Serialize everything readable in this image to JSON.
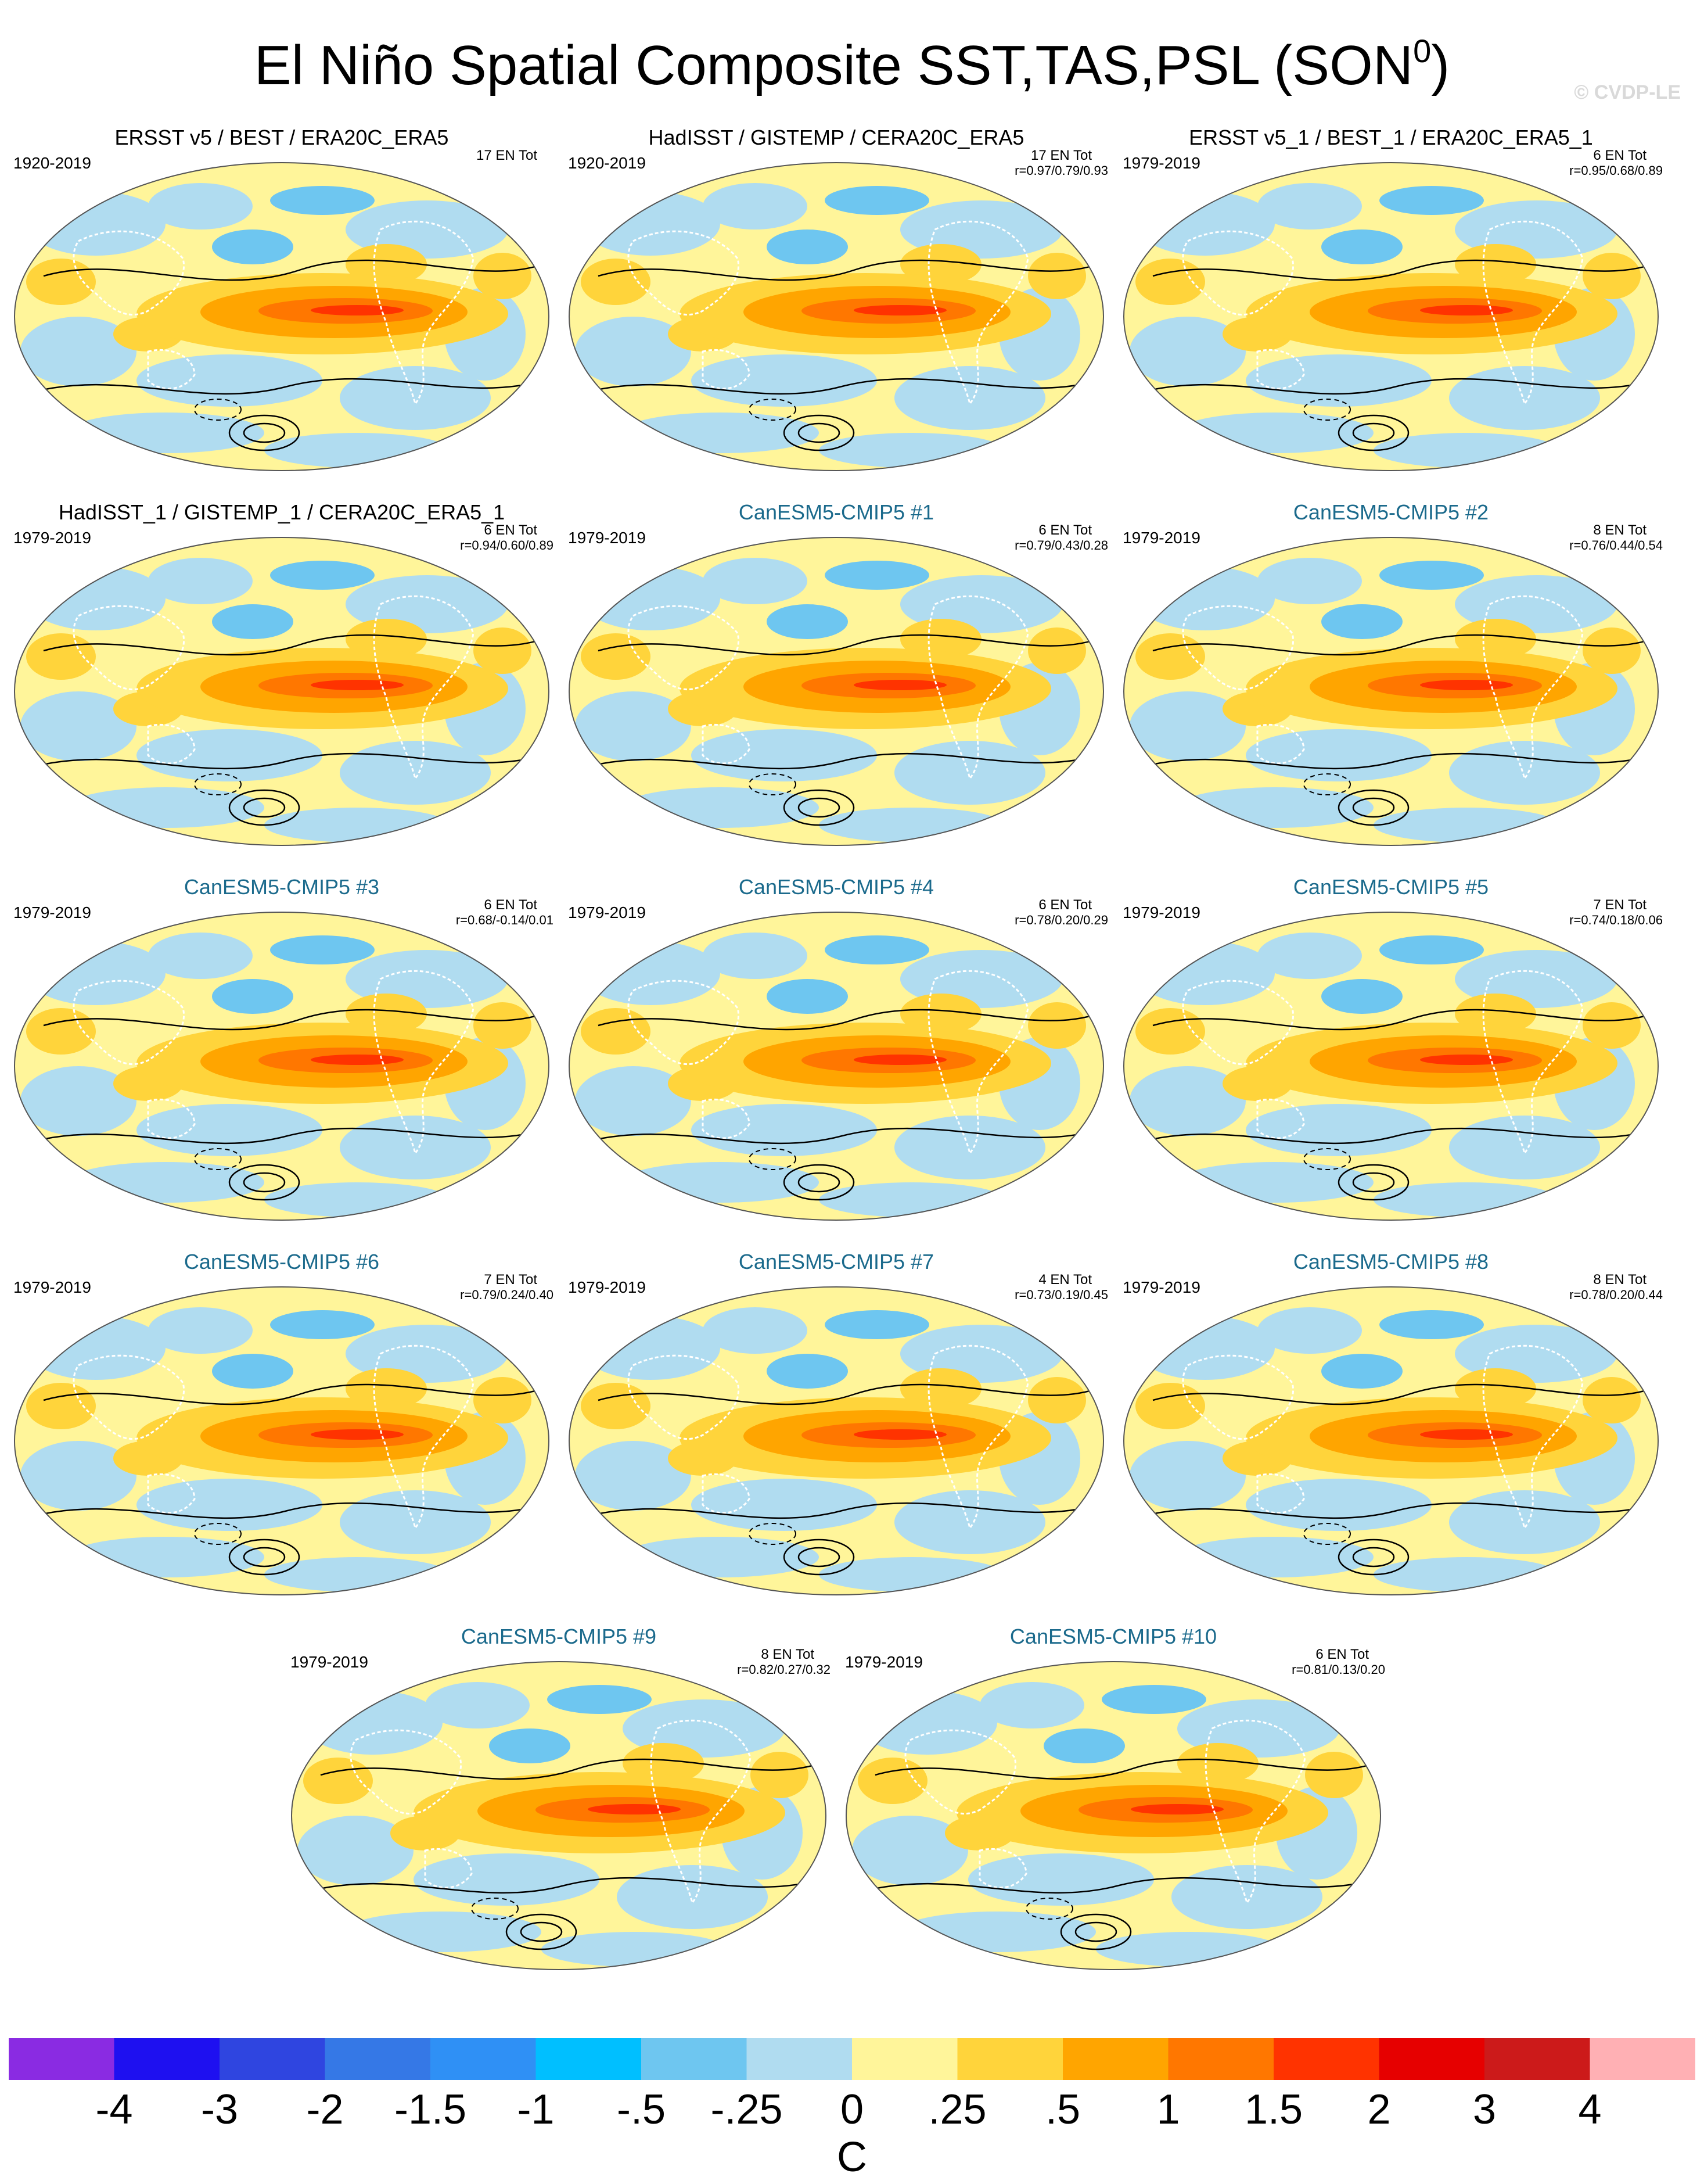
{
  "title": {
    "main": "El Niño Spatial Composite SST,TAS,PSL (SON",
    "sup": "0",
    "close": ")"
  },
  "watermark": "© CVDP-LE",
  "panels": [
    {
      "title": "ERSST v5 / BEST / ERA20C_ERA5",
      "model": false,
      "period": "1920-2019",
      "count": "17 EN Tot",
      "corr": ""
    },
    {
      "title": "HadISST / GISTEMP / CERA20C_ERA5",
      "model": false,
      "period": "1920-2019",
      "count": "17 EN Tot",
      "corr": "r=0.97/0.79/0.93"
    },
    {
      "title": "ERSST v5_1 / BEST_1 / ERA20C_ERA5_1",
      "model": false,
      "period": "1979-2019",
      "count": "6 EN Tot",
      "corr": "r=0.95/0.68/0.89"
    },
    {
      "title": "HadISST_1 / GISTEMP_1 / CERA20C_ERA5_1",
      "model": false,
      "period": "1979-2019",
      "count": "6 EN Tot",
      "corr": "r=0.94/0.60/0.89"
    },
    {
      "title": "CanESM5-CMIP5 #1",
      "model": true,
      "period": "1979-2019",
      "count": "6 EN Tot",
      "corr": "r=0.79/0.43/0.28"
    },
    {
      "title": "CanESM5-CMIP5 #2",
      "model": true,
      "period": "1979-2019",
      "count": "8 EN Tot",
      "corr": "r=0.76/0.44/0.54"
    },
    {
      "title": "CanESM5-CMIP5 #3",
      "model": true,
      "period": "1979-2019",
      "count": "6 EN Tot",
      "corr": "r=0.68/-0.14/0.01"
    },
    {
      "title": "CanESM5-CMIP5 #4",
      "model": true,
      "period": "1979-2019",
      "count": "6 EN Tot",
      "corr": "r=0.78/0.20/0.29"
    },
    {
      "title": "CanESM5-CMIP5 #5",
      "model": true,
      "period": "1979-2019",
      "count": "7 EN Tot",
      "corr": "r=0.74/0.18/0.06"
    },
    {
      "title": "CanESM5-CMIP5 #6",
      "model": true,
      "period": "1979-2019",
      "count": "7 EN Tot",
      "corr": "r=0.79/0.24/0.40"
    },
    {
      "title": "CanESM5-CMIP5 #7",
      "model": true,
      "period": "1979-2019",
      "count": "4 EN Tot",
      "corr": "r=0.73/0.19/0.45"
    },
    {
      "title": "CanESM5-CMIP5 #8",
      "model": true,
      "period": "1979-2019",
      "count": "8 EN Tot",
      "corr": "r=0.78/0.20/0.44"
    },
    {
      "title": "CanESM5-CMIP5 #9",
      "model": true,
      "period": "1979-2019",
      "count": "8 EN Tot",
      "corr": "r=0.82/0.27/0.32"
    },
    {
      "title": "CanESM5-CMIP5 #10",
      "model": true,
      "period": "1979-2019",
      "count": "6 EN Tot",
      "corr": "r=0.81/0.13/0.20"
    }
  ],
  "colorbar": {
    "unit": "C",
    "levels": [
      "-4",
      "-3",
      "-2",
      "-1.5",
      "-1",
      "-.5",
      "-.25",
      "0",
      ".25",
      ".5",
      "1",
      "1.5",
      "2",
      "3",
      "4"
    ],
    "colors": [
      "#8a2be2",
      "#1e10f0",
      "#2f45e0",
      "#3578e6",
      "#2f90f5",
      "#00bfff",
      "#6ec6f0",
      "#b0dcf0",
      "#fff59a",
      "#ffd43b",
      "#ffa500",
      "#ff7700",
      "#ff3300",
      "#e60000",
      "#cc1a1a",
      "#ffb0b4"
    ]
  },
  "chart_data": {
    "type": "heatmap",
    "title": "El Niño Spatial Composite SST,TAS,PSL (SON0)",
    "colorbar_label": "C",
    "colorbar_levels": [
      -4,
      -3,
      -2,
      -1.5,
      -1,
      -0.5,
      -0.25,
      0,
      0.25,
      0.5,
      1,
      1.5,
      2,
      3,
      4
    ],
    "panels": [
      {
        "name": "ERSST v5 / BEST / ERA20C_ERA5",
        "period": "1920-2019",
        "el_nino_events": 17,
        "pattern_correlation": null
      },
      {
        "name": "HadISST / GISTEMP / CERA20C_ERA5",
        "period": "1920-2019",
        "el_nino_events": 17,
        "pattern_correlation": [
          0.97,
          0.79,
          0.93
        ]
      },
      {
        "name": "ERSST v5_1 / BEST_1 / ERA20C_ERA5_1",
        "period": "1979-2019",
        "el_nino_events": 6,
        "pattern_correlation": [
          0.95,
          0.68,
          0.89
        ]
      },
      {
        "name": "HadISST_1 / GISTEMP_1 / CERA20C_ERA5_1",
        "period": "1979-2019",
        "el_nino_events": 6,
        "pattern_correlation": [
          0.94,
          0.6,
          0.89
        ]
      },
      {
        "name": "CanESM5-CMIP5 #1",
        "period": "1979-2019",
        "el_nino_events": 6,
        "pattern_correlation": [
          0.79,
          0.43,
          0.28
        ]
      },
      {
        "name": "CanESM5-CMIP5 #2",
        "period": "1979-2019",
        "el_nino_events": 8,
        "pattern_correlation": [
          0.76,
          0.44,
          0.54
        ]
      },
      {
        "name": "CanESM5-CMIP5 #3",
        "period": "1979-2019",
        "el_nino_events": 6,
        "pattern_correlation": [
          0.68,
          -0.14,
          0.01
        ]
      },
      {
        "name": "CanESM5-CMIP5 #4",
        "period": "1979-2019",
        "el_nino_events": 6,
        "pattern_correlation": [
          0.78,
          0.2,
          0.29
        ]
      },
      {
        "name": "CanESM5-CMIP5 #5",
        "period": "1979-2019",
        "el_nino_events": 7,
        "pattern_correlation": [
          0.74,
          0.18,
          0.06
        ]
      },
      {
        "name": "CanESM5-CMIP5 #6",
        "period": "1979-2019",
        "el_nino_events": 7,
        "pattern_correlation": [
          0.79,
          0.24,
          0.4
        ]
      },
      {
        "name": "CanESM5-CMIP5 #7",
        "period": "1979-2019",
        "el_nino_events": 4,
        "pattern_correlation": [
          0.73,
          0.19,
          0.45
        ]
      },
      {
        "name": "CanESM5-CMIP5 #8",
        "period": "1979-2019",
        "el_nino_events": 8,
        "pattern_correlation": [
          0.78,
          0.2,
          0.44
        ]
      },
      {
        "name": "CanESM5-CMIP5 #9",
        "period": "1979-2019",
        "el_nino_events": 8,
        "pattern_correlation": [
          0.82,
          0.27,
          0.32
        ]
      },
      {
        "name": "CanESM5-CMIP5 #10",
        "period": "1979-2019",
        "el_nino_events": 6,
        "pattern_correlation": [
          0.81,
          0.13,
          0.2
        ]
      }
    ]
  }
}
